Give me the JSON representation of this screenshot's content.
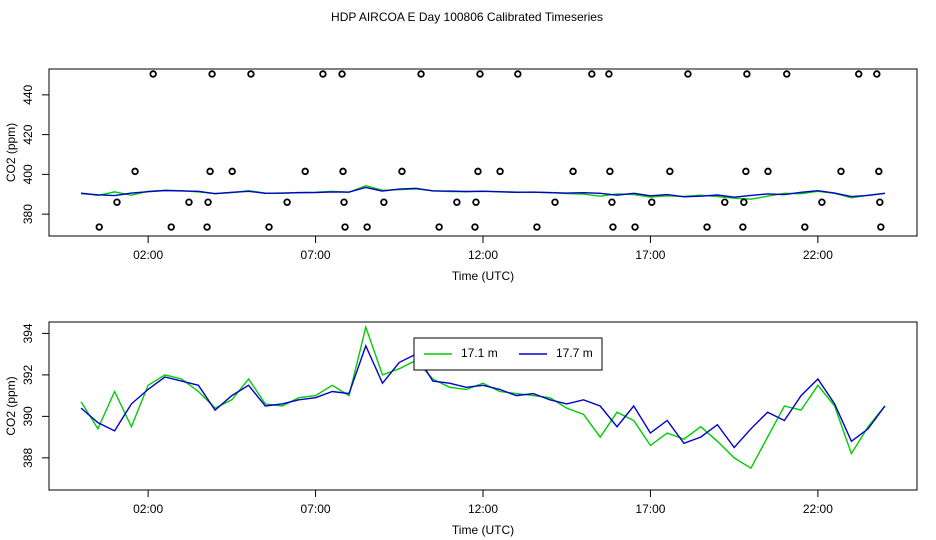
{
  "title": "HDP AIRCOA E  Day 100806  Calibrated Timeseries",
  "chart_data": [
    {
      "type": "line",
      "xlabel": "Time (UTC)",
      "ylabel": "CO2 (ppm)",
      "xlim": [
        -0.96,
        24.96
      ],
      "ylim": [
        369,
        453
      ],
      "xticks": [
        {
          "value": 2,
          "label": "02:00"
        },
        {
          "value": 7,
          "label": "07:00"
        },
        {
          "value": 12,
          "label": "12:00"
        },
        {
          "value": 17,
          "label": "17:00"
        },
        {
          "value": 22,
          "label": "22:00"
        }
      ],
      "yticks": [
        380,
        400,
        420,
        440
      ],
      "x": [
        0,
        0.5,
        1,
        1.5,
        2,
        2.5,
        3,
        3.5,
        4,
        4.5,
        5,
        5.5,
        6,
        6.5,
        7,
        7.5,
        8,
        8.5,
        9,
        9.5,
        10,
        10.5,
        11,
        11.5,
        12,
        12.5,
        13,
        13.5,
        14,
        14.5,
        15,
        15.5,
        16,
        16.5,
        17,
        17.5,
        18,
        18.5,
        19,
        19.5,
        20,
        20.5,
        21,
        21.5,
        22,
        22.5,
        23,
        23.5,
        24
      ],
      "series": [
        {
          "name": "17.1 m",
          "color": "#00cd00",
          "values": [
            390.7,
            389.4,
            391.2,
            389.5,
            391.5,
            392.0,
            391.8,
            391.2,
            390.4,
            390.8,
            391.8,
            390.6,
            390.5,
            390.9,
            391.0,
            391.5,
            391.0,
            394.3,
            392.0,
            392.3,
            392.7,
            391.8,
            391.4,
            391.3,
            391.6,
            391.2,
            391.1,
            391.0,
            390.9,
            390.4,
            390.1,
            389.0,
            390.2,
            389.8,
            388.6,
            389.2,
            388.9,
            389.5,
            388.8,
            388.0,
            387.5,
            389.0,
            390.5,
            390.3,
            391.5,
            390.5,
            388.2,
            389.5,
            390.5
          ]
        },
        {
          "name": "17.7 m",
          "color": "#0000cd",
          "values": [
            390.4,
            389.7,
            389.3,
            390.6,
            391.3,
            391.9,
            391.7,
            391.5,
            390.3,
            391.0,
            391.5,
            390.5,
            390.6,
            390.8,
            390.9,
            391.2,
            391.1,
            393.4,
            391.6,
            392.6,
            393.0,
            391.7,
            391.6,
            391.4,
            391.5,
            391.3,
            391.0,
            391.1,
            390.8,
            390.6,
            390.8,
            390.5,
            389.5,
            390.5,
            389.2,
            389.8,
            388.7,
            389.0,
            389.6,
            388.5,
            389.4,
            390.2,
            389.8,
            391.0,
            391.8,
            390.6,
            388.8,
            389.4,
            390.5
          ]
        }
      ],
      "points": {
        "x": [
          2.15,
          3.91,
          5.07,
          7.22,
          7.79,
          10.15,
          11.91,
          13.04,
          15.25,
          15.76,
          18.12,
          19.88,
          21.07,
          23.22,
          23.76,
          1.61,
          3.85,
          4.51,
          6.69,
          7.82,
          9.58,
          11.85,
          12.51,
          14.69,
          15.79,
          17.58,
          19.85,
          20.51,
          22.69,
          23.82,
          1.07,
          3.22,
          3.79,
          6.15,
          7.85,
          9.04,
          11.22,
          11.79,
          14.15,
          15.85,
          17.04,
          19.22,
          19.79,
          22.12,
          23.85,
          0.54,
          2.69,
          3.76,
          5.61,
          7.88,
          8.54,
          10.69,
          11.76,
          13.61,
          15.88,
          16.54,
          18.69,
          19.76,
          21.61,
          23.88
        ],
        "values": [
          450.5,
          450.5,
          450.5,
          450.5,
          450.5,
          450.5,
          450.5,
          450.5,
          450.5,
          450.5,
          450.5,
          450.5,
          450.5,
          450.5,
          450.5,
          401.5,
          401.5,
          401.5,
          401.5,
          401.5,
          401.5,
          401.5,
          401.5,
          401.5,
          401.5,
          401.5,
          401.5,
          401.5,
          401.5,
          401.5,
          386,
          386,
          386,
          386,
          386,
          386,
          386,
          386,
          386,
          386,
          386,
          386,
          386,
          386,
          386,
          373.5,
          373.5,
          373.5,
          373.5,
          373.5,
          373.5,
          373.5,
          373.5,
          373.5,
          373.5,
          373.5,
          373.5,
          373.5,
          373.5,
          373.5
        ],
        "color": "#000000"
      }
    },
    {
      "type": "line",
      "xlabel": "Time (UTC)",
      "ylabel": "CO2 (ppm)",
      "xlim": [
        -0.96,
        24.96
      ],
      "ylim": [
        386.45,
        394.55
      ],
      "xticks": [
        {
          "value": 2,
          "label": "02:00"
        },
        {
          "value": 7,
          "label": "07:00"
        },
        {
          "value": 12,
          "label": "12:00"
        },
        {
          "value": 17,
          "label": "17:00"
        },
        {
          "value": 22,
          "label": "22:00"
        }
      ],
      "yticks": [
        388,
        390,
        392,
        394
      ],
      "legend": "top",
      "x": [
        0,
        0.5,
        1,
        1.5,
        2,
        2.5,
        3,
        3.5,
        4,
        4.5,
        5,
        5.5,
        6,
        6.5,
        7,
        7.5,
        8,
        8.5,
        9,
        9.5,
        10,
        10.5,
        11,
        11.5,
        12,
        12.5,
        13,
        13.5,
        14,
        14.5,
        15,
        15.5,
        16,
        16.5,
        17,
        17.5,
        18,
        18.5,
        19,
        19.5,
        20,
        20.5,
        21,
        21.5,
        22,
        22.5,
        23,
        23.5,
        24
      ],
      "series": [
        {
          "name": "17.1 m",
          "color": "#00cd00",
          "values": [
            390.7,
            389.4,
            391.2,
            389.5,
            391.5,
            392.0,
            391.8,
            391.2,
            390.4,
            390.8,
            391.8,
            390.6,
            390.5,
            390.9,
            391.0,
            391.5,
            391.0,
            394.3,
            392.0,
            392.3,
            392.7,
            391.8,
            391.4,
            391.3,
            391.6,
            391.2,
            391.1,
            391.0,
            390.9,
            390.4,
            390.1,
            389.0,
            390.2,
            389.8,
            388.6,
            389.2,
            388.9,
            389.5,
            388.8,
            388.0,
            387.5,
            389.0,
            390.5,
            390.3,
            391.5,
            390.5,
            388.2,
            389.5,
            390.5
          ]
        },
        {
          "name": "17.7 m",
          "color": "#0000cd",
          "values": [
            390.4,
            389.7,
            389.3,
            390.6,
            391.3,
            391.9,
            391.7,
            391.5,
            390.3,
            391.0,
            391.5,
            390.5,
            390.6,
            390.8,
            390.9,
            391.2,
            391.1,
            393.4,
            391.6,
            392.6,
            393.0,
            391.7,
            391.6,
            391.4,
            391.5,
            391.3,
            391.0,
            391.1,
            390.8,
            390.6,
            390.8,
            390.5,
            389.5,
            390.5,
            389.2,
            389.8,
            388.7,
            389.0,
            389.6,
            388.5,
            389.4,
            390.2,
            389.8,
            391.0,
            391.8,
            390.6,
            388.8,
            389.4,
            390.5
          ]
        }
      ]
    }
  ]
}
